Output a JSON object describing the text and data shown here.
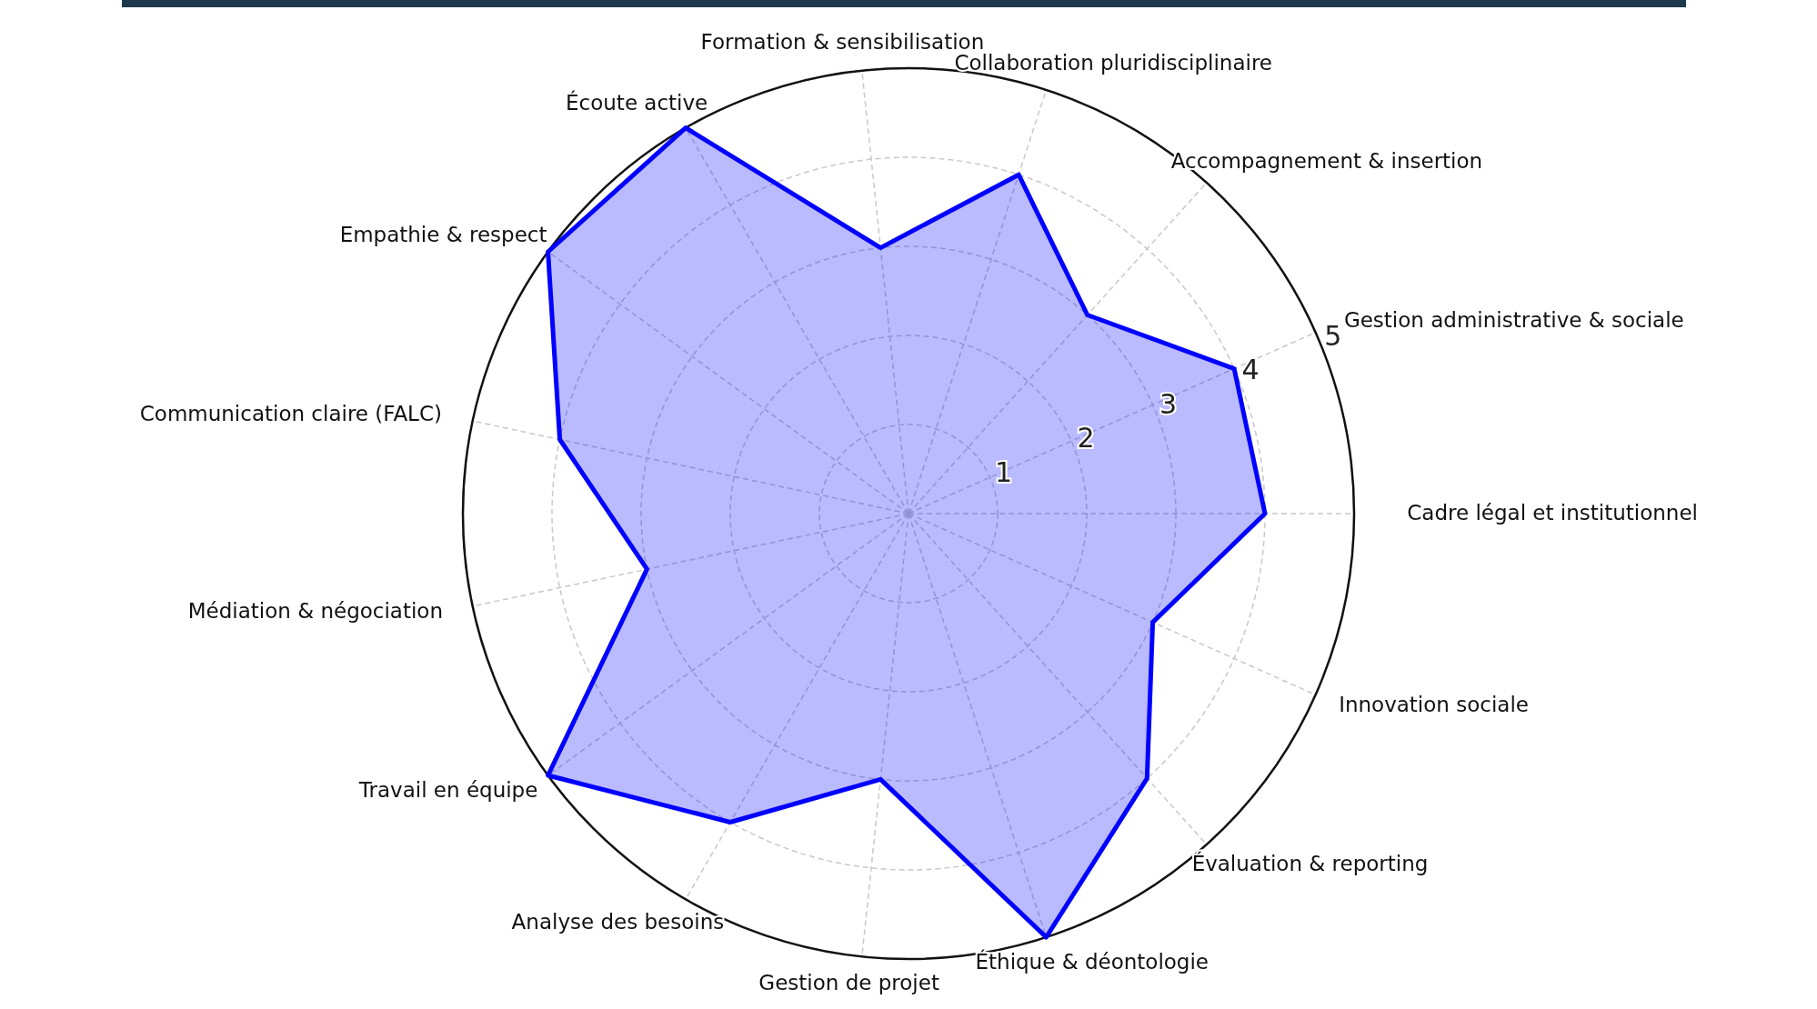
{
  "chart_data": {
    "type": "radar",
    "categories": [
      "Collaboration pluridisciplinaire",
      "Accompagnement & insertion",
      "Gestion administrative & sociale",
      "Cadre légal et institutionnel",
      "Innovation sociale",
      "Évaluation & reporting",
      "Éthique & déontologie",
      "Gestion de projet",
      "Analyse des besoins",
      "Travail en équipe",
      "Médiation & négociation",
      "Communication claire (FALC)",
      "Empathie & respect",
      "Écoute active",
      "Formation & sensibilisation"
    ],
    "series": [
      {
        "color": "#0000ff",
        "values": [
          4,
          3,
          4,
          4,
          3,
          4,
          5,
          3,
          4,
          5,
          3,
          4,
          5,
          5,
          3
        ]
      }
    ],
    "ylim": [
      0,
      5
    ],
    "yticks": [
      1,
      2,
      3,
      4,
      5
    ],
    "grid": true,
    "marker": "none",
    "line_style": "solid"
  }
}
